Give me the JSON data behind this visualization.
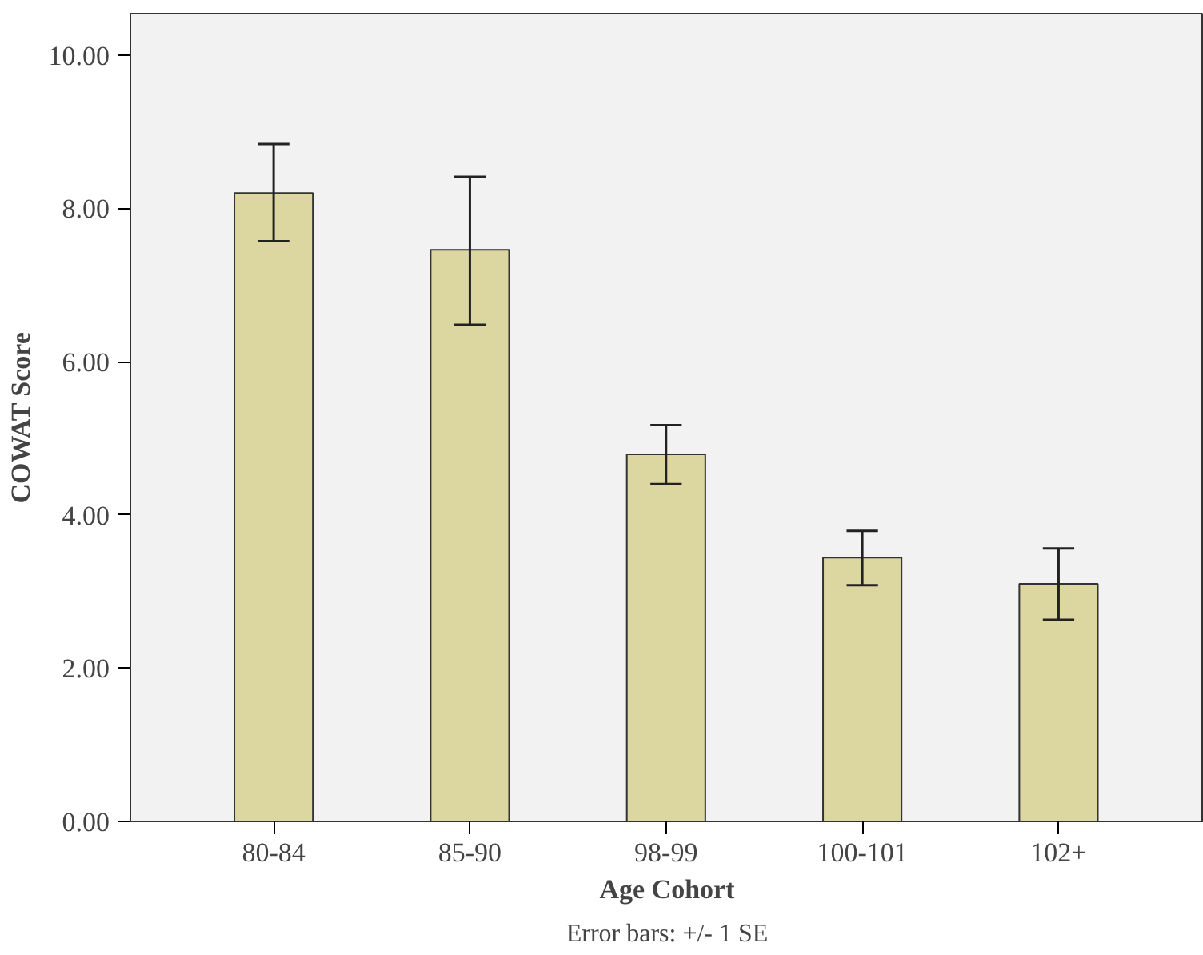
{
  "chart_data": {
    "type": "bar",
    "xlabel": "Age Cohort",
    "ylabel": "COWAT Score",
    "annotations": [
      "Error bars: +/- 1 SE"
    ],
    "categories": [
      "80-84",
      "85-90",
      "98-99",
      "100-101",
      "102+"
    ],
    "values": [
      8.2,
      7.46,
      4.79,
      3.44,
      3.1
    ],
    "errors": [
      [
        7.57,
        8.84
      ],
      [
        6.48,
        8.41
      ],
      [
        4.4,
        5.17
      ],
      [
        3.08,
        3.79
      ],
      [
        2.63,
        3.56
      ]
    ],
    "color": "#dcd6a0",
    "ylim": [
      0,
      10.54
    ],
    "yticks": [
      {
        "value": 0,
        "label": "0.00"
      },
      {
        "value": 2,
        "label": "2.00"
      },
      {
        "value": 4,
        "label": "4.00"
      },
      {
        "value": 6,
        "label": "6.00"
      },
      {
        "value": 8,
        "label": "8.00"
      },
      {
        "value": 10,
        "label": "10.00"
      }
    ],
    "grid": false
  }
}
